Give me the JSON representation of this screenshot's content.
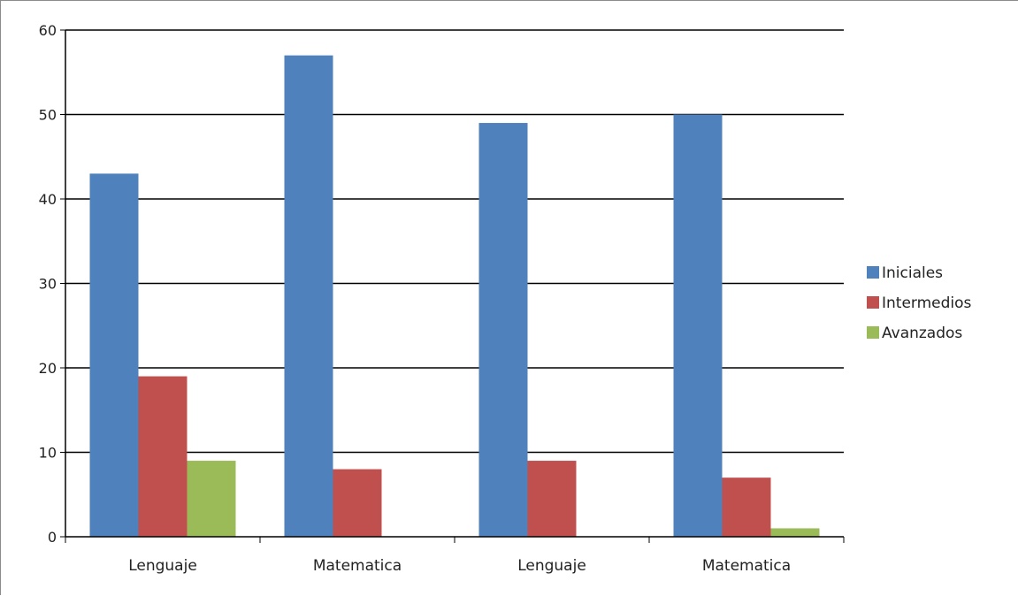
{
  "chart_data": {
    "type": "bar",
    "categories": [
      "Lenguaje",
      "Matematica",
      "Lenguaje",
      "Matematica"
    ],
    "series": [
      {
        "name": "Iniciales",
        "values": [
          43,
          57,
          49,
          50
        ],
        "color": "#4f81bd"
      },
      {
        "name": "Intermedios",
        "values": [
          19,
          8,
          9,
          7
        ],
        "color": "#c0504d"
      },
      {
        "name": "Avanzados",
        "values": [
          9,
          0,
          0,
          1
        ],
        "color": "#9bbb59"
      }
    ],
    "yticks": [
      0,
      10,
      20,
      30,
      40,
      50,
      60
    ],
    "ylim": [
      0,
      60
    ],
    "grid": true,
    "legend": "right",
    "title": "",
    "xlabel": "",
    "ylabel": ""
  }
}
